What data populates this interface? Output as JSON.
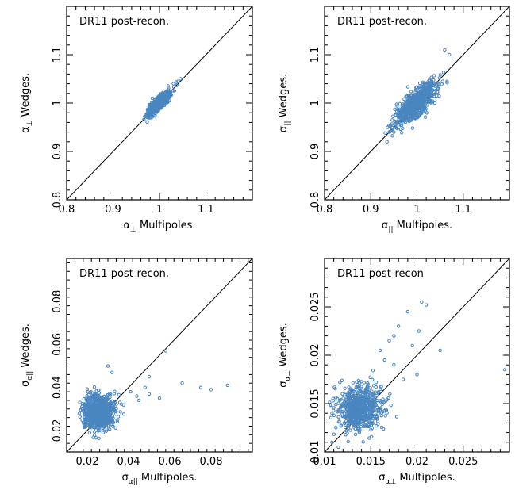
{
  "chart_data": [
    {
      "type": "scatter",
      "title": "DR11 post-recon.",
      "xlabel": {
        "main": "α",
        "sub": "⊥",
        "rest": " Multipoles."
      },
      "ylabel": {
        "main": "α",
        "sub": "⊥",
        "rest": " Wedges."
      },
      "xlim": [
        0.8,
        1.2
      ],
      "ylim": [
        0.8,
        1.2
      ],
      "xticks": [
        0.8,
        0.9,
        1.0,
        1.1
      ],
      "xtick_labels": [
        "0.8",
        "0.9",
        "1",
        "1.1"
      ],
      "yticks": [
        0.8,
        0.9,
        1.0,
        1.1
      ],
      "ytick_labels": [
        "0.8",
        "0.9",
        "1",
        "1.1"
      ],
      "diagonal": true,
      "point_color": "#4a86c0",
      "cloud": {
        "count": 600,
        "center": [
          1.0,
          1.0
        ],
        "sd_along": 0.016,
        "sd_across": 0.005,
        "x_range": [
          0.965,
          1.045
        ]
      },
      "points": [
        [
          1.045,
          1.05
        ],
        [
          1.04,
          1.045
        ],
        [
          0.97,
          0.975
        ],
        [
          1.03,
          1.04
        ]
      ]
    },
    {
      "type": "scatter",
      "title": "DR11 post-recon.",
      "xlabel": {
        "main": "α",
        "sub": "||",
        "rest": " Multipoles."
      },
      "ylabel": {
        "main": "α",
        "sub": "||",
        "rest": " Wedges."
      },
      "xlim": [
        0.8,
        1.2
      ],
      "ylim": [
        0.8,
        1.2
      ],
      "xticks": [
        0.8,
        0.9,
        1.0,
        1.1
      ],
      "xtick_labels": [
        "0.8",
        "0.9",
        "1",
        "1.1"
      ],
      "yticks": [
        0.8,
        0.9,
        1.0,
        1.1
      ],
      "ytick_labels": [
        "0.8",
        "0.9",
        "1",
        "1.1"
      ],
      "diagonal": true,
      "point_color": "#4a86c0",
      "cloud": {
        "count": 750,
        "center": [
          1.0,
          1.0
        ],
        "sd_along": 0.03,
        "sd_across": 0.01,
        "x_range": [
          0.93,
          1.075
        ]
      },
      "points": [
        [
          0.935,
          0.92
        ],
        [
          1.06,
          1.11
        ],
        [
          1.07,
          1.1
        ],
        [
          0.95,
          0.94
        ],
        [
          1.065,
          1.045
        ]
      ]
    },
    {
      "type": "scatter",
      "title": "DR11 post-recon.",
      "xlabel": {
        "main": "σ",
        "sub": "α||",
        "rest": " Multipoles."
      },
      "ylabel": {
        "main": "σ",
        "sub": "α||",
        "rest": " Wedges."
      },
      "xlim": [
        0.01,
        0.1
      ],
      "ylim": [
        0.01,
        0.1
      ],
      "xticks": [
        0.02,
        0.04,
        0.06,
        0.08
      ],
      "xtick_labels": [
        "0.02",
        "0.04",
        "0.06",
        "0.08"
      ],
      "yticks": [
        0.02,
        0.04,
        0.06,
        0.08
      ],
      "ytick_labels": [
        "0.02",
        "0.04",
        "0.06",
        "0.08"
      ],
      "diagonal": true,
      "point_color": "#4a86c0",
      "cloud": {
        "count": 800,
        "center": [
          0.025,
          0.029
        ],
        "sd_along": 0.004,
        "sd_across": 0.004,
        "x_range": [
          0.016,
          0.045
        ]
      },
      "points": [
        [
          0.058,
          0.057
        ],
        [
          0.05,
          0.045
        ],
        [
          0.066,
          0.042
        ],
        [
          0.075,
          0.04
        ],
        [
          0.088,
          0.041
        ],
        [
          0.08,
          0.039
        ],
        [
          0.045,
          0.034
        ],
        [
          0.044,
          0.036
        ],
        [
          0.05,
          0.037
        ],
        [
          0.055,
          0.035
        ],
        [
          0.041,
          0.038
        ],
        [
          0.032,
          0.047
        ],
        [
          0.03,
          0.05
        ],
        [
          0.048,
          0.04
        ]
      ]
    },
    {
      "type": "scatter",
      "title": "DR11 post-recon",
      "xlabel": {
        "main": "σ",
        "sub": "α⊥",
        "rest": " Multipoles."
      },
      "ylabel": {
        "main": "σ",
        "sub": "α⊥",
        "rest": " Wedges."
      },
      "xlim": [
        0.01,
        0.03
      ],
      "ylim": [
        0.01,
        0.03
      ],
      "xticks": [
        0.01,
        0.015,
        0.02,
        0.025
      ],
      "xtick_labels": [
        "0.01",
        "0.015",
        "0.02",
        "0.025"
      ],
      "yticks": [
        0.01,
        0.015,
        0.02,
        0.025
      ],
      "ytick_labels": [
        "0.01",
        "0.015",
        "0.02",
        "0.025"
      ],
      "diagonal": true,
      "point_color": "#4a86c0",
      "cloud": {
        "count": 700,
        "center": [
          0.0138,
          0.0145
        ],
        "sd_along": 0.0012,
        "sd_across": 0.0011,
        "x_range": [
          0.0105,
          0.02
        ]
      },
      "points": [
        [
          0.0295,
          0.0185
        ],
        [
          0.0225,
          0.0205
        ],
        [
          0.021,
          0.0252
        ],
        [
          0.0205,
          0.0255
        ],
        [
          0.019,
          0.0245
        ],
        [
          0.018,
          0.023
        ],
        [
          0.0175,
          0.022
        ],
        [
          0.017,
          0.0215
        ],
        [
          0.0195,
          0.021
        ],
        [
          0.0202,
          0.0225
        ],
        [
          0.016,
          0.0205
        ],
        [
          0.0115,
          0.0105
        ],
        [
          0.0108,
          0.011
        ],
        [
          0.0185,
          0.0175
        ],
        [
          0.0175,
          0.019
        ],
        [
          0.0165,
          0.0195
        ],
        [
          0.02,
          0.018
        ]
      ]
    }
  ]
}
